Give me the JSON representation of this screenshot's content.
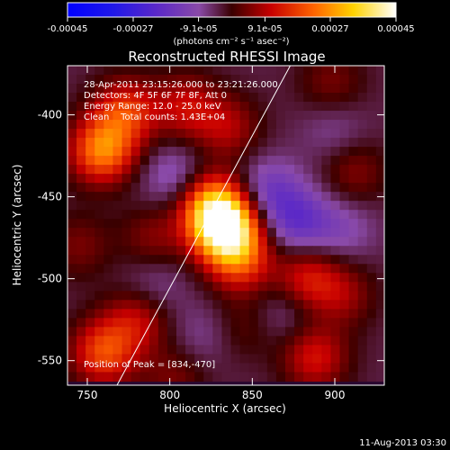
{
  "chart_data": {
    "type": "heatmap",
    "title": "Reconstructed RHESSI Image",
    "xlabel": "Heliocentric X (arcsec)",
    "ylabel": "Heliocentric Y (arcsec)",
    "xlim": [
      738,
      930
    ],
    "ylim": [
      -565,
      -370
    ],
    "x_ticks": [
      "750",
      "800",
      "850",
      "900"
    ],
    "x_tick_values": [
      750,
      800,
      850,
      900
    ],
    "y_ticks": [
      "-400",
      "-450",
      "-500",
      "-550"
    ],
    "y_tick_values": [
      -400,
      -450,
      -500,
      -550
    ],
    "colorbar": {
      "min": -0.00045,
      "max": 0.00045,
      "tick_labels": [
        "-0.00045",
        "-0.00027",
        "-9.1e-05",
        "9.1e-05",
        "0.00027",
        "0.00045"
      ],
      "tick_values": [
        -0.00045,
        -0.00027,
        -9.1e-05,
        9.1e-05,
        0.00027,
        0.00045
      ],
      "unit_label": "(photons cm⁻² s⁻¹ asec⁻²)"
    },
    "annotations": {
      "time_range": "28-Apr-2011 23:15:26.000 to 23:21:26.000",
      "detectors": "Detectors: 4F 5F 6F 7F 8F, Att 0",
      "energy": "Energy Range: 12.0 - 25.0 keV",
      "method_counts": "Clean    Total counts: 1.43E+04",
      "peak": "Position of Peak = [834,-470]"
    },
    "peak_position": [
      834,
      -470
    ],
    "limb_line": [
      [
        768,
        -565
      ],
      [
        873,
        -370
      ]
    ],
    "sources": [
      {
        "x": 834,
        "y": -470,
        "value": 0.00045
      },
      {
        "x": 826,
        "y": -455,
        "value": 0.00028
      },
      {
        "x": 843,
        "y": -490,
        "value": 0.00018
      },
      {
        "x": 759,
        "y": -422,
        "value": 0.00028
      },
      {
        "x": 773,
        "y": -398,
        "value": 0.0002
      },
      {
        "x": 810,
        "y": -395,
        "value": 0.00014
      },
      {
        "x": 835,
        "y": -408,
        "value": 0.00012
      },
      {
        "x": 760,
        "y": -545,
        "value": 0.00022
      },
      {
        "x": 780,
        "y": -525,
        "value": 0.00014
      },
      {
        "x": 883,
        "y": -500,
        "value": 0.00016
      },
      {
        "x": 888,
        "y": -548,
        "value": 0.00016
      },
      {
        "x": 905,
        "y": -510,
        "value": 0.0001
      },
      {
        "x": 790,
        "y": -475,
        "value": 9e-05
      },
      {
        "x": 912,
        "y": -435,
        "value": 9e-05
      },
      {
        "x": 898,
        "y": -380,
        "value": 8e-05
      },
      {
        "x": 803,
        "y": -560,
        "value": 8e-05
      },
      {
        "x": 745,
        "y": -480,
        "value": 8e-05
      },
      {
        "x": 845,
        "y": -530,
        "value": 6e-05
      },
      {
        "x": 860,
        "y": -447,
        "value": -0.00012
      },
      {
        "x": 878,
        "y": -465,
        "value": -0.00014
      },
      {
        "x": 870,
        "y": -520,
        "value": -6e-05
      },
      {
        "x": 803,
        "y": -438,
        "value": -9e-05
      },
      {
        "x": 790,
        "y": -505,
        "value": -6e-05
      },
      {
        "x": 905,
        "y": -470,
        "value": -7e-05
      },
      {
        "x": 820,
        "y": -535,
        "value": -5e-05
      },
      {
        "x": 900,
        "y": -410,
        "value": -5e-05
      }
    ]
  },
  "footer": {
    "date": "11-Aug-2013 03:30"
  }
}
